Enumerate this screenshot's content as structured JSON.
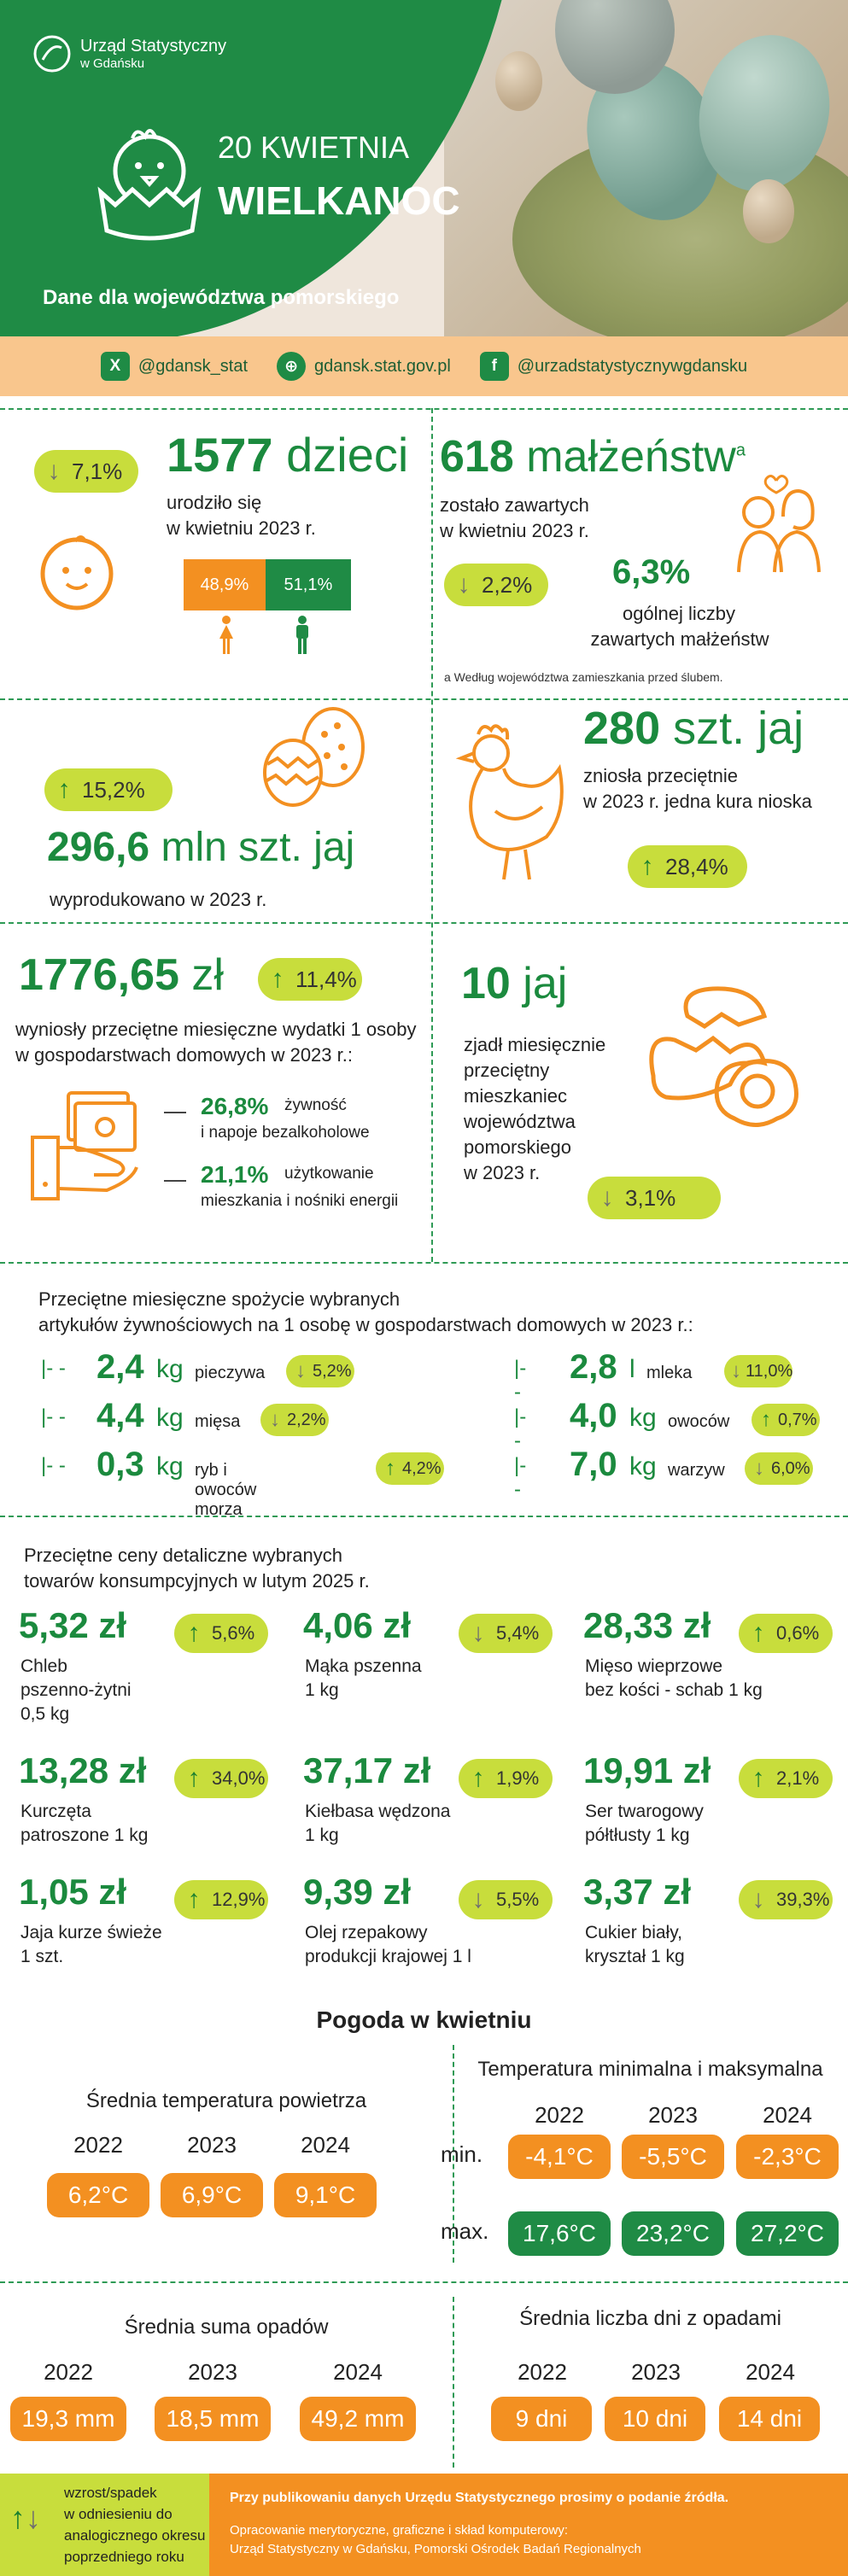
{
  "header": {
    "logo_line1": "Urząd Statystyczny",
    "logo_line2": "w Gdańsku",
    "date": "20 KWIETNIA",
    "title": "WIELKANOC",
    "subtitle": "Dane dla województwa pomorskiego"
  },
  "socials": [
    {
      "icon": "x-icon",
      "glyph": "X",
      "label": "@gdansk_stat"
    },
    {
      "icon": "globe-icon",
      "glyph": "⊕",
      "label": "gdansk.stat.gov.pl"
    },
    {
      "icon": "facebook-icon",
      "glyph": "f",
      "label": "@urzadstatystycznywgdansku"
    }
  ],
  "births": {
    "change": "7,1%",
    "value": "1577",
    "unit": "dzieci",
    "desc1": "urodziło się",
    "desc2": "w kwietniu 2023 r.",
    "girls_pct": "48,9%",
    "boys_pct": "51,1%",
    "girls_share": 48.9,
    "boys_share": 51.1
  },
  "marriages": {
    "value": "618",
    "unit": "małżeństw",
    "sup": "a",
    "desc1": "zostało zawartych",
    "desc2": "w kwietniu 2023 r.",
    "change": "2,2%",
    "share": "6,3%",
    "share_desc1": "ogólnej liczby",
    "share_desc2": "zawartych małżeństw",
    "note": "a Według województwa zamieszkania przed ślubem."
  },
  "eggs_production": {
    "change": "15,2%",
    "value": "296,6",
    "unit": "mln szt. jaj",
    "desc": "wyprodukowano w 2023 r."
  },
  "hen": {
    "value": "280",
    "unit": "szt. jaj",
    "desc1": "zniosła przeciętnie",
    "desc2": "w 2023 r. jedna kura nioska",
    "change": "28,4%"
  },
  "expenses": {
    "value": "1776,65",
    "unit": "zł",
    "change": "11,4%",
    "desc1": "wyniosły przeciętne miesięczne wydatki 1 osoby",
    "desc2": "w gospodarstwach domowych w 2023 r.:",
    "items": [
      {
        "pct": "26,8%",
        "label1": "żywność",
        "label2": "i napoje bezalkoholowe"
      },
      {
        "pct": "21,1%",
        "label1": "użytkowanie",
        "label2": "mieszkania i nośniki energii"
      }
    ]
  },
  "eggs_eaten": {
    "value": "10",
    "unit": "jaj",
    "desc": [
      "zjadł miesięcznie",
      "przeciętny",
      "mieszkaniec",
      "województwa",
      "pomorskiego",
      "w 2023 r."
    ],
    "change": "3,1%"
  },
  "consumption": {
    "title1": "Przeciętne miesięczne spożycie wybranych",
    "title2": "artykułów żywnościowych na 1 osobę w gospodarstwach domowych w 2023 r.:",
    "left": [
      {
        "value": "2,4",
        "unit": "kg",
        "label": "pieczywa",
        "change": "5,2%",
        "dir": "down"
      },
      {
        "value": "4,4",
        "unit": "kg",
        "label": "mięsa",
        "change": "2,2%",
        "dir": "down"
      },
      {
        "value": "0,3",
        "unit": "kg",
        "label": "ryb i owoców morza",
        "change": "4,2%",
        "dir": "up"
      }
    ],
    "right": [
      {
        "value": "2,8",
        "unit": "l",
        "label": "mleka",
        "change": "11,0%",
        "dir": "down"
      },
      {
        "value": "4,0",
        "unit": "kg",
        "label": "owoców",
        "change": "0,7%",
        "dir": "up"
      },
      {
        "value": "7,0",
        "unit": "kg",
        "label": "warzyw",
        "change": "6,0%",
        "dir": "down"
      }
    ]
  },
  "prices": {
    "title1": "Przeciętne ceny detaliczne wybranych",
    "title2": "towarów konsumpcyjnych w lutym 2025 r.",
    "items": [
      {
        "price": "5,32 zł",
        "change": "5,6%",
        "dir": "up",
        "label": [
          "Chleb",
          "pszenno-żytni",
          "0,5 kg"
        ]
      },
      {
        "price": "4,06 zł",
        "change": "5,4%",
        "dir": "down",
        "label": [
          "Mąka pszenna",
          "1 kg"
        ]
      },
      {
        "price": "28,33 zł",
        "change": "0,6%",
        "dir": "up",
        "label": [
          "Mięso wieprzowe",
          "bez kości - schab 1 kg"
        ]
      },
      {
        "price": "13,28 zł",
        "change": "34,0%",
        "dir": "up",
        "label": [
          "Kurczęta",
          "patroszone 1 kg"
        ]
      },
      {
        "price": "37,17 zł",
        "change": "1,9%",
        "dir": "up",
        "label": [
          "Kiełbasa wędzona",
          "1 kg"
        ]
      },
      {
        "price": "19,91 zł",
        "change": "2,1%",
        "dir": "up",
        "label": [
          "Ser twarogowy",
          "półtłusty 1 kg"
        ]
      },
      {
        "price": "1,05 zł",
        "change": "12,9%",
        "dir": "up",
        "label": [
          "Jaja kurze świeże",
          "1 szt."
        ]
      },
      {
        "price": "9,39 zł",
        "change": "5,5%",
        "dir": "down",
        "label": [
          "Olej rzepakowy",
          "produkcji krajowej 1 l"
        ]
      },
      {
        "price": "3,37 zł",
        "change": "39,3%",
        "dir": "down",
        "label": [
          "Cukier biały,",
          "kryształ 1 kg"
        ]
      }
    ]
  },
  "weather": {
    "title": "Pogoda w kwietniu",
    "avg_temp": {
      "title": "Średnia temperatura powietrza",
      "years": [
        "2022",
        "2023",
        "2024"
      ],
      "values": [
        "6,2°C",
        "6,9°C",
        "9,1°C"
      ]
    },
    "minmax": {
      "title": "Temperatura minimalna i maksymalna",
      "years": [
        "2022",
        "2023",
        "2024"
      ],
      "min_label": "min.",
      "max_label": "max.",
      "min": [
        "-4,1°C",
        "-5,5°C",
        "-2,3°C"
      ],
      "max": [
        "17,6°C",
        "23,2°C",
        "27,2°C"
      ]
    },
    "precip": {
      "title": "Średnia suma opadów",
      "years": [
        "2022",
        "2023",
        "2024"
      ],
      "values": [
        "19,3 mm",
        "18,5 mm",
        "49,2 mm"
      ]
    },
    "rain_days": {
      "title": "Średnia liczba dni z opadami",
      "years": [
        "2022",
        "2023",
        "2024"
      ],
      "values": [
        "9 dni",
        "10 dni",
        "14 dni"
      ]
    }
  },
  "footer": {
    "legend": [
      "wzrost/spadek",
      "w odniesieniu do",
      "analogicznego okresu",
      "poprzedniego roku"
    ],
    "notice": "Przy publikowaniu danych Urzędu Statystycznego prosimy o podanie źródła.",
    "credit1": "Opracowanie merytoryczne, graficzne i skład komputerowy:",
    "credit2": "Urząd Statystyczny w Gdańsku, Pomorski Ośrodek Badań Regionalnych"
  },
  "colors": {
    "green": "#1f8b45",
    "orange": "#f39021",
    "lime": "#c8dd3c",
    "peach": "#f9c68d"
  }
}
